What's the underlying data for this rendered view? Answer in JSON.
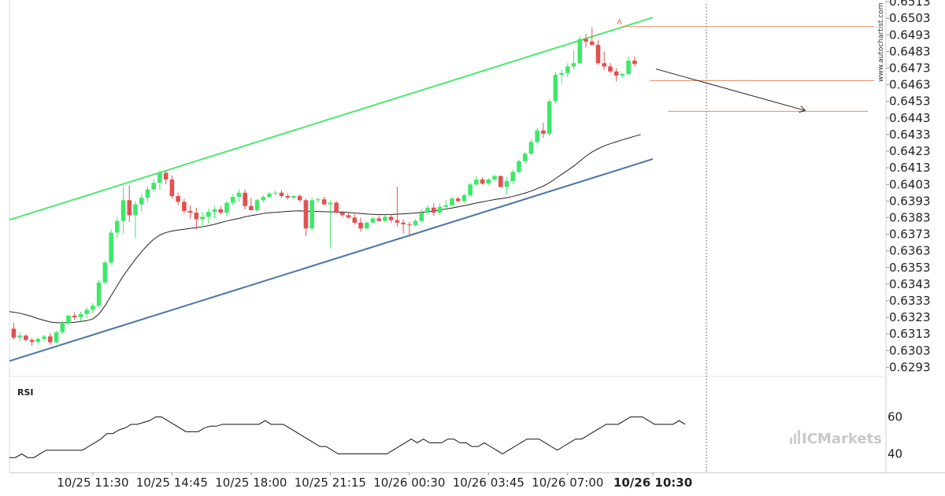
{
  "chart_data": {
    "type": "candlestick",
    "price_axis": {
      "ticks": [
        "0.6513",
        "0.6503",
        "0.6493",
        "0.6483",
        "0.6473",
        "0.6463",
        "0.6453",
        "0.6443",
        "0.6433",
        "0.6423",
        "0.6413",
        "0.6403",
        "0.6393",
        "0.6383",
        "0.6373",
        "0.6363",
        "0.6353",
        "0.6343",
        "0.6333",
        "0.6323",
        "0.6313",
        "0.6303",
        "0.6293"
      ],
      "range": [
        0.62875,
        0.6514
      ]
    },
    "time_axis": {
      "labels": [
        "10/25 11:30",
        "10/25 14:45",
        "10/25 18:00",
        "10/25 21:15",
        "10/26 00:30",
        "10/26 03:45",
        "10/26 07:00",
        "10/26 10:30"
      ],
      "label_bar_index": [
        13,
        26,
        39,
        52,
        65,
        78,
        91,
        105
      ],
      "bold_label_index": 7,
      "bar_minutes": 15
    },
    "candles": [
      [
        0.63162,
        0.63195,
        0.63095,
        0.63108
      ],
      [
        0.63108,
        0.63142,
        0.63082,
        0.6312
      ],
      [
        0.6312,
        0.63128,
        0.63085,
        0.63094
      ],
      [
        0.63094,
        0.63105,
        0.63058,
        0.63082
      ],
      [
        0.63082,
        0.6311,
        0.63066,
        0.631
      ],
      [
        0.631,
        0.63125,
        0.63085,
        0.63115
      ],
      [
        0.63115,
        0.63135,
        0.63065,
        0.6308
      ],
      [
        0.6308,
        0.6315,
        0.63075,
        0.6314
      ],
      [
        0.6314,
        0.6321,
        0.6313,
        0.63198
      ],
      [
        0.63198,
        0.63248,
        0.63185,
        0.6324
      ],
      [
        0.6324,
        0.6326,
        0.63215,
        0.6323
      ],
      [
        0.6323,
        0.63265,
        0.63205,
        0.6325
      ],
      [
        0.6325,
        0.6329,
        0.63225,
        0.63275
      ],
      [
        0.63275,
        0.63315,
        0.63255,
        0.633
      ],
      [
        0.633,
        0.63455,
        0.6329,
        0.6344
      ],
      [
        0.6344,
        0.6357,
        0.6343,
        0.6356
      ],
      [
        0.6356,
        0.6376,
        0.63545,
        0.6374
      ],
      [
        0.6374,
        0.6383,
        0.63705,
        0.6381
      ],
      [
        0.6381,
        0.64015,
        0.63735,
        0.63935
      ],
      [
        0.63935,
        0.64025,
        0.63805,
        0.63845
      ],
      [
        0.63845,
        0.6393,
        0.63705,
        0.6391
      ],
      [
        0.6391,
        0.63975,
        0.63865,
        0.6395
      ],
      [
        0.6395,
        0.6402,
        0.63925,
        0.64
      ],
      [
        0.64,
        0.6406,
        0.63985,
        0.6404
      ],
      [
        0.6404,
        0.64115,
        0.63995,
        0.641
      ],
      [
        0.641,
        0.6411,
        0.6403,
        0.6406
      ],
      [
        0.6406,
        0.64085,
        0.63945,
        0.6396
      ],
      [
        0.6396,
        0.6398,
        0.63905,
        0.63925
      ],
      [
        0.63925,
        0.63945,
        0.63855,
        0.6387
      ],
      [
        0.6387,
        0.63905,
        0.63825,
        0.6386
      ],
      [
        0.6386,
        0.6389,
        0.6376,
        0.6382
      ],
      [
        0.6382,
        0.63865,
        0.63775,
        0.63835
      ],
      [
        0.63835,
        0.63885,
        0.63795,
        0.63865
      ],
      [
        0.63865,
        0.639,
        0.63825,
        0.6388
      ],
      [
        0.6388,
        0.639,
        0.6385,
        0.6386
      ],
      [
        0.6386,
        0.6393,
        0.6384,
        0.6392
      ],
      [
        0.6392,
        0.6397,
        0.63905,
        0.63955
      ],
      [
        0.63955,
        0.64,
        0.63925,
        0.6398
      ],
      [
        0.6398,
        0.64,
        0.6388,
        0.639
      ],
      [
        0.639,
        0.6395,
        0.63875,
        0.63875
      ],
      [
        0.63875,
        0.63945,
        0.63865,
        0.63935
      ],
      [
        0.63935,
        0.63965,
        0.6392,
        0.63955
      ],
      [
        0.63955,
        0.63985,
        0.6395,
        0.63975
      ],
      [
        0.63975,
        0.63995,
        0.6396,
        0.6398
      ],
      [
        0.6398,
        0.63995,
        0.6395,
        0.6396
      ],
      [
        0.6396,
        0.63975,
        0.6394,
        0.6395
      ],
      [
        0.6395,
        0.63965,
        0.6394,
        0.6396
      ],
      [
        0.6396,
        0.6397,
        0.63925,
        0.63935
      ],
      [
        0.63935,
        0.63945,
        0.6372,
        0.63765
      ],
      [
        0.63765,
        0.6395,
        0.6375,
        0.63935
      ],
      [
        0.63935,
        0.6395,
        0.6392,
        0.6394
      ],
      [
        0.6394,
        0.63955,
        0.63905,
        0.6391
      ],
      [
        0.6391,
        0.63935,
        0.63645,
        0.6392
      ],
      [
        0.6392,
        0.6393,
        0.63855,
        0.6386
      ],
      [
        0.6386,
        0.6387,
        0.63835,
        0.63845
      ],
      [
        0.63845,
        0.6386,
        0.63825,
        0.6383
      ],
      [
        0.6383,
        0.6385,
        0.6379,
        0.638
      ],
      [
        0.638,
        0.6383,
        0.63745,
        0.63765
      ],
      [
        0.63765,
        0.63805,
        0.6376,
        0.638
      ],
      [
        0.638,
        0.63835,
        0.63795,
        0.63825
      ],
      [
        0.63825,
        0.6384,
        0.63805,
        0.6381
      ],
      [
        0.6381,
        0.63845,
        0.638,
        0.63835
      ],
      [
        0.63835,
        0.6385,
        0.638,
        0.63815
      ],
      [
        0.63815,
        0.64015,
        0.63775,
        0.638
      ],
      [
        0.638,
        0.6382,
        0.63735,
        0.6379
      ],
      [
        0.6379,
        0.63805,
        0.63715,
        0.63785
      ],
      [
        0.63785,
        0.6382,
        0.63775,
        0.6381
      ],
      [
        0.6381,
        0.6388,
        0.638,
        0.6386
      ],
      [
        0.6386,
        0.63905,
        0.6385,
        0.6389
      ],
      [
        0.6389,
        0.6392,
        0.6384,
        0.6386
      ],
      [
        0.6386,
        0.63915,
        0.6385,
        0.63895
      ],
      [
        0.63895,
        0.63935,
        0.63875,
        0.63905
      ],
      [
        0.63905,
        0.63955,
        0.63895,
        0.63945
      ],
      [
        0.63945,
        0.63955,
        0.6392,
        0.6393
      ],
      [
        0.6393,
        0.63975,
        0.6392,
        0.63965
      ],
      [
        0.63965,
        0.6404,
        0.63955,
        0.6403
      ],
      [
        0.6403,
        0.6408,
        0.6402,
        0.6406
      ],
      [
        0.6406,
        0.64075,
        0.6403,
        0.64035
      ],
      [
        0.64035,
        0.6407,
        0.64025,
        0.6406
      ],
      [
        0.6406,
        0.6409,
        0.6405,
        0.6408
      ],
      [
        0.6408,
        0.64085,
        0.6401,
        0.64015
      ],
      [
        0.64015,
        0.64075,
        0.6397,
        0.6405
      ],
      [
        0.6405,
        0.6412,
        0.6403,
        0.64105
      ],
      [
        0.64105,
        0.6418,
        0.64095,
        0.6417
      ],
      [
        0.6417,
        0.64225,
        0.64155,
        0.64215
      ],
      [
        0.64215,
        0.643,
        0.64205,
        0.64285
      ],
      [
        0.64285,
        0.6437,
        0.6427,
        0.64355
      ],
      [
        0.64355,
        0.644,
        0.6431,
        0.64335
      ],
      [
        0.64335,
        0.64545,
        0.6432,
        0.6453
      ],
      [
        0.6453,
        0.64705,
        0.64515,
        0.6469
      ],
      [
        0.6469,
        0.6472,
        0.64635,
        0.647
      ],
      [
        0.647,
        0.6476,
        0.64675,
        0.6474
      ],
      [
        0.6474,
        0.64835,
        0.6472,
        0.6476
      ],
      [
        0.6476,
        0.6492,
        0.64755,
        0.64905
      ],
      [
        0.64905,
        0.64935,
        0.64855,
        0.6489
      ],
      [
        0.6489,
        0.64975,
        0.64865,
        0.6487
      ],
      [
        0.6487,
        0.649,
        0.6475,
        0.6476
      ],
      [
        0.6476,
        0.6483,
        0.6472,
        0.6474
      ],
      [
        0.6474,
        0.6476,
        0.647,
        0.6471
      ],
      [
        0.6471,
        0.6473,
        0.6465,
        0.64685
      ],
      [
        0.64685,
        0.647,
        0.6467,
        0.64695
      ],
      [
        0.64695,
        0.648,
        0.6469,
        0.64775
      ],
      [
        0.64775,
        0.648,
        0.6474,
        0.64755
      ]
    ],
    "indicator_ma": [
      0.63265,
      0.63255,
      0.63245,
      0.63235,
      0.63222,
      0.63212,
      0.63202,
      0.63198,
      0.63198,
      0.63198,
      0.632,
      0.63205,
      0.6321,
      0.6322,
      0.6325,
      0.633,
      0.6336,
      0.6342,
      0.6348,
      0.6353,
      0.6358,
      0.63625,
      0.63665,
      0.637,
      0.63725,
      0.6374,
      0.6375,
      0.63755,
      0.6376,
      0.63765,
      0.6377,
      0.63775,
      0.63782,
      0.6379,
      0.638,
      0.6381,
      0.63818,
      0.63825,
      0.63835,
      0.63842,
      0.63848,
      0.63855,
      0.6386,
      0.63862,
      0.63865,
      0.63868,
      0.6387,
      0.63871,
      0.63869,
      0.63868,
      0.63867,
      0.63866,
      0.63865,
      0.63864,
      0.63863,
      0.63861,
      0.63858,
      0.63855,
      0.63852,
      0.6385,
      0.63848,
      0.63848,
      0.63849,
      0.63851,
      0.63853,
      0.63855,
      0.63858,
      0.63862,
      0.63866,
      0.6387,
      0.63876,
      0.63882,
      0.63888,
      0.63895,
      0.63902,
      0.6391,
      0.63918,
      0.63925,
      0.63932,
      0.63939,
      0.63944,
      0.6395,
      0.63958,
      0.63967,
      0.63978,
      0.6399,
      0.64005,
      0.6402,
      0.6404,
      0.64065,
      0.6409,
      0.64115,
      0.6414,
      0.6417,
      0.642,
      0.64225,
      0.64245,
      0.64262,
      0.64275,
      0.64287,
      0.64298,
      0.64309,
      0.6432,
      0.6433
    ],
    "channel": {
      "resistance": [
        [
          0,
          0.63817
        ],
        [
          105,
          0.65035
        ]
      ],
      "support": [
        [
          0,
          0.62967
        ],
        [
          105,
          0.64183
        ]
      ]
    },
    "pattern_levels": {
      "level_A": 0.6498,
      "level_B": 0.64655,
      "target": 0.6447,
      "projection": [
        [
          105.5,
          0.64725
        ],
        [
          130,
          0.64475
        ]
      ],
      "point_label": "A",
      "color": "#e98a60"
    },
    "rsi": {
      "label": "RSI",
      "ticks": [
        "60",
        "40"
      ],
      "range": [
        30,
        76
      ],
      "values": [
        38,
        38,
        40,
        38,
        38,
        40,
        42,
        42,
        42,
        42,
        42,
        42,
        42,
        44,
        46,
        48,
        51,
        51,
        53,
        54,
        56,
        56,
        57,
        58,
        60,
        60,
        58,
        56,
        54,
        52,
        52,
        52,
        54,
        55,
        55,
        56,
        56,
        56,
        56,
        56,
        56,
        56,
        58,
        56,
        56,
        56,
        54,
        52,
        50,
        48,
        46,
        44,
        44,
        42,
        40,
        40,
        40,
        40,
        40,
        40,
        40,
        40,
        40,
        42,
        44,
        46,
        48,
        46,
        48,
        46,
        46,
        46,
        48,
        48,
        46,
        46,
        44,
        44,
        46,
        44,
        42,
        40,
        42,
        44,
        46,
        48,
        48,
        48,
        46,
        44,
        42,
        44,
        46,
        48,
        48,
        50,
        52,
        54,
        56,
        56,
        56,
        58,
        60,
        60,
        60,
        58,
        56,
        56,
        56,
        56,
        58,
        56
      ]
    },
    "watermark": "www.autochartist.com",
    "brand": "ICMarkets"
  }
}
